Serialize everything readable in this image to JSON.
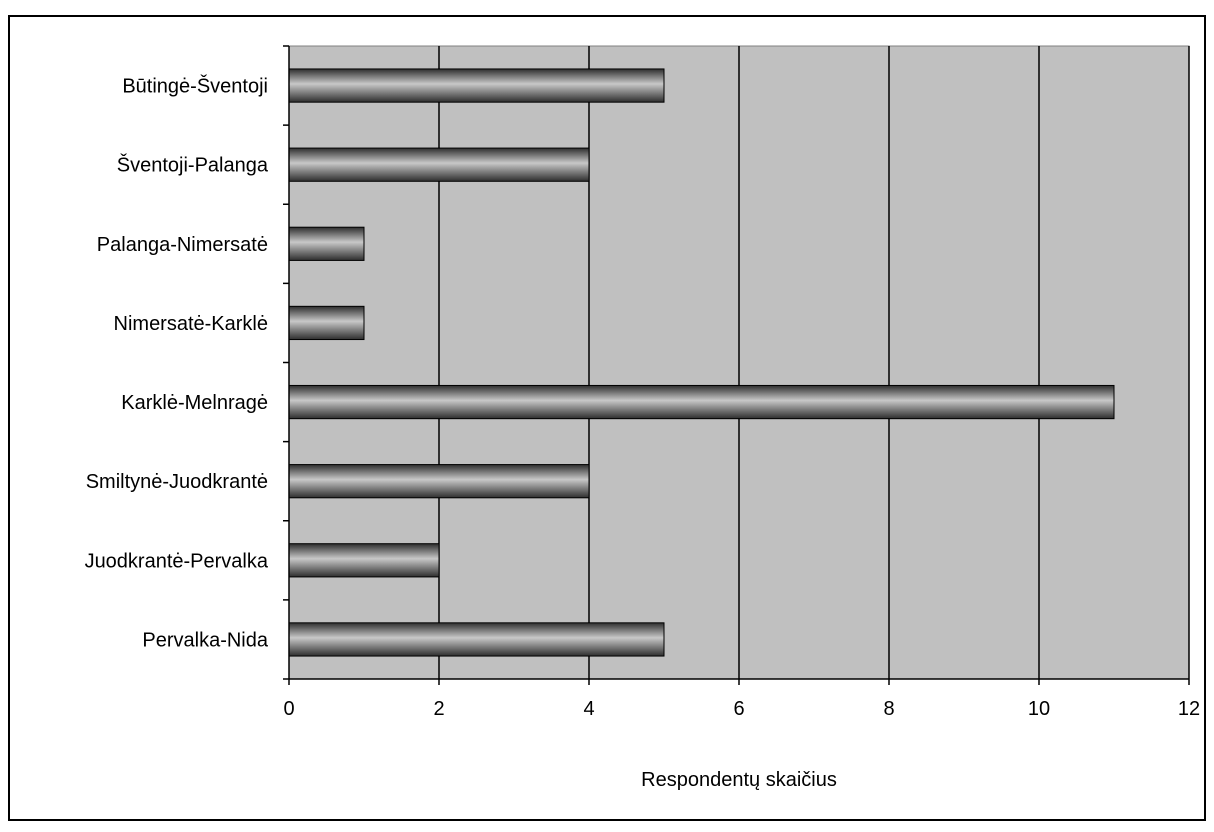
{
  "chart_data": {
    "type": "bar",
    "orientation": "horizontal",
    "categories": [
      "Būtingė-Šventoji",
      "Šventoji-Palanga",
      "Palanga-Nimersatė",
      "Nimersatė-Karklė",
      "Karklė-Melnragė",
      "Smiltynė-Juodkrantė",
      "Juodkrantė-Pervalka",
      "Pervalka-Nida"
    ],
    "values": [
      5,
      4,
      1,
      1,
      11,
      4,
      2,
      5
    ],
    "title": "",
    "xlabel": "Respondentų skaičius",
    "ylabel": "",
    "xlim": [
      0,
      12
    ],
    "xticks": [
      "0",
      "2",
      "4",
      "6",
      "8",
      "10",
      "12"
    ],
    "grid": "vertical major gridlines",
    "legend": "none",
    "colors": {
      "plot_background": "#c0c0c0",
      "bar_dark": "#3a3a3a",
      "bar_light": "#bdbdbd",
      "gridline": "#000000"
    }
  }
}
